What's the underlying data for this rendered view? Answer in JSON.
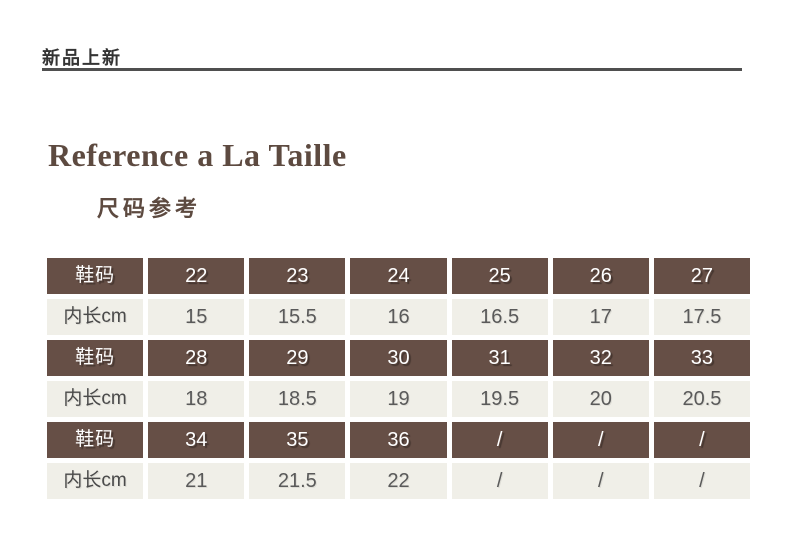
{
  "header": {
    "badge": "新品上新"
  },
  "title": "Reference a La Taille",
  "subtitle": "尺码参考",
  "colors": {
    "brand_brown": "#664f46",
    "cell_cream": "#f0efe8",
    "title_brown": "#5d4a40",
    "rule_gray": "#4f4f4f"
  },
  "size_table": {
    "size_label": "鞋码",
    "length_label": "内长cm",
    "groups": [
      {
        "sizes": [
          "22",
          "23",
          "24",
          "25",
          "26",
          "27"
        ],
        "lengths": [
          "15",
          "15.5",
          "16",
          "16.5",
          "17",
          "17.5"
        ]
      },
      {
        "sizes": [
          "28",
          "29",
          "30",
          "31",
          "32",
          "33"
        ],
        "lengths": [
          "18",
          "18.5",
          "19",
          "19.5",
          "20",
          "20.5"
        ]
      },
      {
        "sizes": [
          "34",
          "35",
          "36",
          "/",
          "/",
          "/"
        ],
        "lengths": [
          "21",
          "21.5",
          "22",
          "/",
          "/",
          "/"
        ]
      }
    ]
  }
}
